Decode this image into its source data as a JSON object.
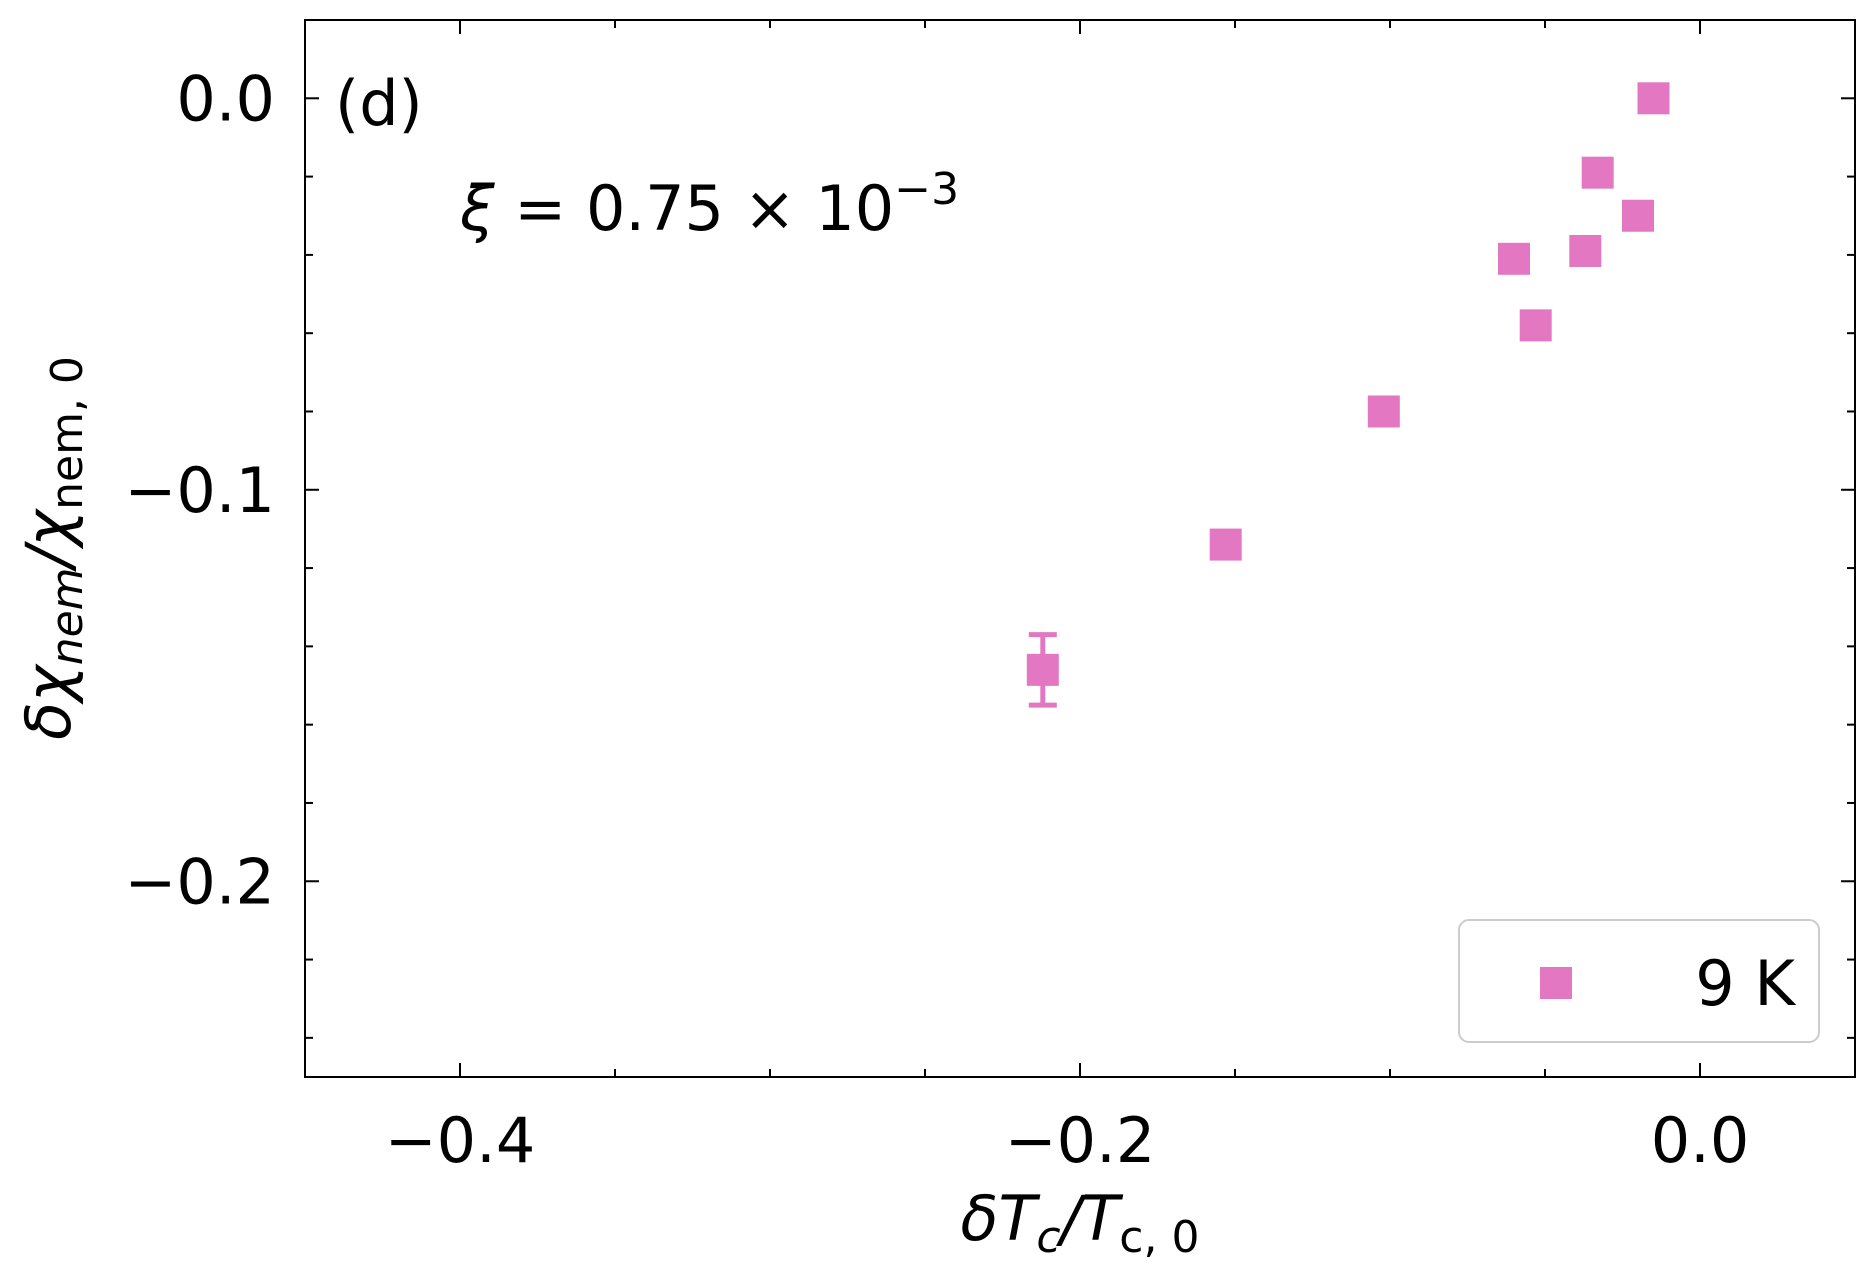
{
  "chart_data": {
    "type": "scatter",
    "panel_label": "(d)",
    "annotation": {
      "symbol": "ξ",
      "equals": " = 0.75 × 10",
      "exponent": "−3"
    },
    "xlabel": {
      "main": "δT",
      "sub1": "c",
      "slash": "/T",
      "sub2": "c, 0"
    },
    "ylabel": {
      "main": "δχ",
      "sub1": "nem",
      "slash": "/χ",
      "sub2": "nem, 0"
    },
    "xlim": [
      -0.45,
      0.05
    ],
    "ylim": [
      -0.25,
      0.02
    ],
    "xticks": [
      {
        "value": -0.4,
        "label": "−0.4"
      },
      {
        "value": -0.2,
        "label": "−0.2"
      },
      {
        "value": 0.0,
        "label": "0.0"
      }
    ],
    "yticks": [
      {
        "value": 0.0,
        "label": "0.0"
      },
      {
        "value": -0.1,
        "label": "−0.1"
      },
      {
        "value": -0.2,
        "label": "−0.2"
      }
    ],
    "xminor_step": 0.05,
    "yminor_step": 0.02,
    "grid": false,
    "legend_position": "lower right",
    "series": [
      {
        "name": "9 K",
        "color": "#e377c2",
        "marker": "square",
        "points": [
          {
            "x": -0.015,
            "y": 0.0,
            "err": 0.0
          },
          {
            "x": -0.033,
            "y": -0.019,
            "err": 0.0
          },
          {
            "x": -0.02,
            "y": -0.03,
            "err": 0.003
          },
          {
            "x": -0.06,
            "y": -0.041,
            "err": 0.0
          },
          {
            "x": -0.037,
            "y": -0.039,
            "err": 0.002
          },
          {
            "x": -0.053,
            "y": -0.058,
            "err": 0.002
          },
          {
            "x": -0.102,
            "y": -0.08,
            "err": 0.0
          },
          {
            "x": -0.153,
            "y": -0.114,
            "err": 0.003
          },
          {
            "x": -0.212,
            "y": -0.146,
            "err": 0.009
          }
        ]
      }
    ]
  }
}
